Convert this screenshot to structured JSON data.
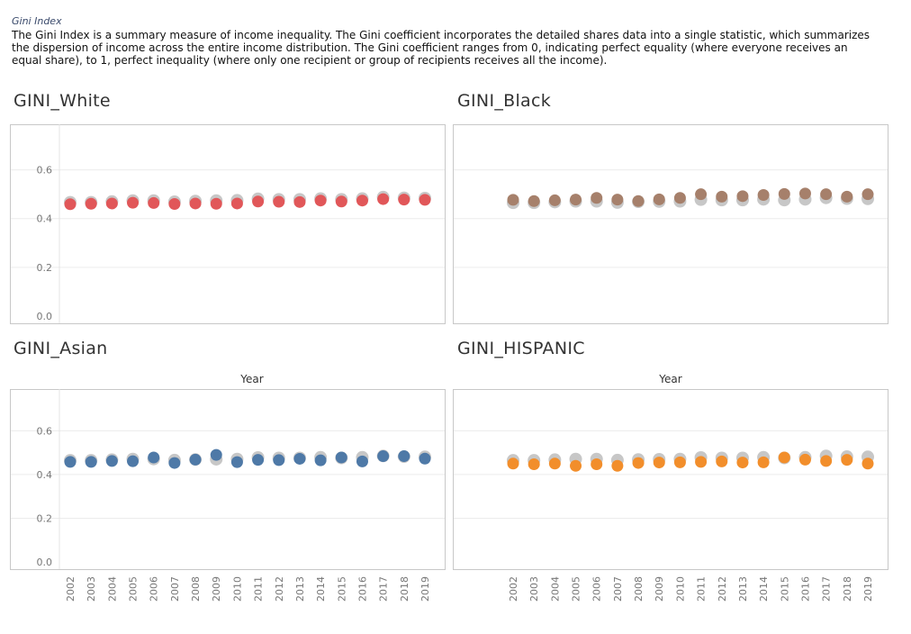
{
  "header": {
    "title": "Gini Index",
    "description": "The Gini Index is a summary measure of income inequality. The Gini coefficient incorporates the detailed shares data into a single statistic, which summarizes the dispersion of income across the entire income distribution. The Gini coefficient ranges from 0, indicating perfect equality (where everyone receives an equal share), to 1, perfect inequality (where only one recipient or group of recipients receives all the income)."
  },
  "chart_data": [
    {
      "type": "scatter",
      "title": "GINI_White",
      "xlabel": "",
      "ylabel": "",
      "ylim": [
        0,
        0.75
      ],
      "yticks": [
        "0.0",
        "0.2",
        "0.4",
        "0.6"
      ],
      "grid": true,
      "x": [
        2002,
        2003,
        2004,
        2005,
        2006,
        2007,
        2008,
        2009,
        2010,
        2011,
        2012,
        2013,
        2014,
        2015,
        2016,
        2017,
        2018,
        2019
      ],
      "series": [
        {
          "color": "#e15759",
          "values": [
            0.459,
            0.461,
            0.462,
            0.465,
            0.464,
            0.46,
            0.462,
            0.461,
            0.462,
            0.47,
            0.469,
            0.468,
            0.474,
            0.47,
            0.474,
            0.48,
            0.478,
            0.477
          ]
        }
      ],
      "reference": {
        "color": "#bdbdbd",
        "values": [
          0.467,
          0.467,
          0.47,
          0.474,
          0.474,
          0.469,
          0.472,
          0.474,
          0.475,
          0.481,
          0.479,
          0.479,
          0.482,
          0.479,
          0.482,
          0.488,
          0.485,
          0.484
        ]
      }
    },
    {
      "type": "scatter",
      "title": "GINI_Black",
      "xlabel": "",
      "ylabel": "",
      "ylim": [
        0,
        0.75
      ],
      "grid": true,
      "x": [
        2002,
        2003,
        2004,
        2005,
        2006,
        2007,
        2008,
        2009,
        2010,
        2011,
        2012,
        2013,
        2014,
        2015,
        2016,
        2017,
        2018,
        2019
      ],
      "series": [
        {
          "color": "#a6806b",
          "values": [
            0.477,
            0.472,
            0.475,
            0.478,
            0.485,
            0.478,
            0.472,
            0.479,
            0.485,
            0.5,
            0.49,
            0.492,
            0.497,
            0.501,
            0.503,
            0.5,
            0.49,
            0.5
          ]
        }
      ],
      "reference": {
        "color": "#bdbdbd",
        "values": [
          0.465,
          0.465,
          0.468,
          0.471,
          0.471,
          0.466,
          0.469,
          0.47,
          0.471,
          0.478,
          0.476,
          0.476,
          0.479,
          0.476,
          0.479,
          0.485,
          0.482,
          0.481
        ]
      }
    },
    {
      "type": "scatter",
      "title": "GINI_Asian",
      "xlabel": "Year",
      "ylabel": "",
      "ylim": [
        0,
        0.75
      ],
      "yticks": [
        "0.0",
        "0.2",
        "0.4",
        "0.6"
      ],
      "grid": true,
      "x": [
        2002,
        2003,
        2004,
        2005,
        2006,
        2007,
        2008,
        2009,
        2010,
        2011,
        2012,
        2013,
        2014,
        2015,
        2016,
        2017,
        2018,
        2019
      ],
      "series": [
        {
          "color": "#4e79a7",
          "values": [
            0.458,
            0.458,
            0.462,
            0.461,
            0.478,
            0.453,
            0.468,
            0.49,
            0.457,
            0.467,
            0.466,
            0.472,
            0.465,
            0.478,
            0.46,
            0.484,
            0.484,
            0.473
          ]
        }
      ],
      "reference": {
        "color": "#bdbdbd",
        "values": [
          0.465,
          0.465,
          0.468,
          0.471,
          0.471,
          0.466,
          0.469,
          0.47,
          0.471,
          0.478,
          0.476,
          0.476,
          0.479,
          0.476,
          0.479,
          0.485,
          0.482,
          0.481
        ]
      }
    },
    {
      "type": "scatter",
      "title": "GINI_HISPANIC",
      "xlabel": "Year",
      "ylabel": "",
      "ylim": [
        0,
        0.75
      ],
      "grid": true,
      "x": [
        2002,
        2003,
        2004,
        2005,
        2006,
        2007,
        2008,
        2009,
        2010,
        2011,
        2012,
        2013,
        2014,
        2015,
        2016,
        2017,
        2018,
        2019
      ],
      "series": [
        {
          "color": "#f28e2b",
          "values": [
            0.45,
            0.447,
            0.45,
            0.44,
            0.447,
            0.44,
            0.453,
            0.455,
            0.456,
            0.458,
            0.46,
            0.455,
            0.456,
            0.478,
            0.468,
            0.462,
            0.467,
            0.45
          ]
        }
      ],
      "reference": {
        "color": "#bdbdbd",
        "values": [
          0.465,
          0.465,
          0.468,
          0.471,
          0.471,
          0.466,
          0.469,
          0.47,
          0.471,
          0.478,
          0.476,
          0.476,
          0.479,
          0.476,
          0.479,
          0.485,
          0.482,
          0.481
        ]
      }
    }
  ]
}
